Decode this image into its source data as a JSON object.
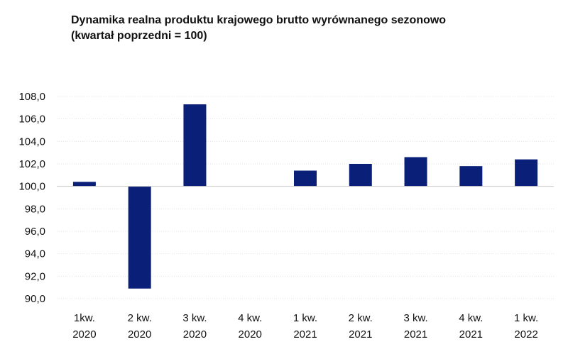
{
  "chart_data": {
    "type": "bar",
    "title_line1": "Dynamika realna produktu krajowego brutto wyrównanego sezonowo",
    "title_line2": "(kwartał poprzedni = 100)",
    "categories": [
      [
        "1kw.",
        "2020"
      ],
      [
        "2 kw.",
        "2020"
      ],
      [
        "3 kw.",
        "2020"
      ],
      [
        "4 kw.",
        "2020"
      ],
      [
        "1 kw.",
        "2021"
      ],
      [
        "2 kw.",
        "2021"
      ],
      [
        "3 kw.",
        "2021"
      ],
      [
        "4 kw.",
        "2021"
      ],
      [
        "1 kw.",
        "2022"
      ]
    ],
    "values": [
      100.4,
      90.9,
      107.3,
      100.0,
      101.4,
      102.0,
      102.6,
      101.8,
      102.4
    ],
    "baseline": 100.0,
    "ylim": [
      90.0,
      108.0
    ],
    "yticks": [
      "90,0",
      "92,0",
      "94,0",
      "96,0",
      "98,0",
      "100,0",
      "102,0",
      "104,0",
      "106,0",
      "108,0"
    ],
    "ytick_values": [
      90,
      92,
      94,
      96,
      98,
      100,
      102,
      104,
      106,
      108
    ],
    "bar_color": "#0a1f78",
    "grid": true
  }
}
